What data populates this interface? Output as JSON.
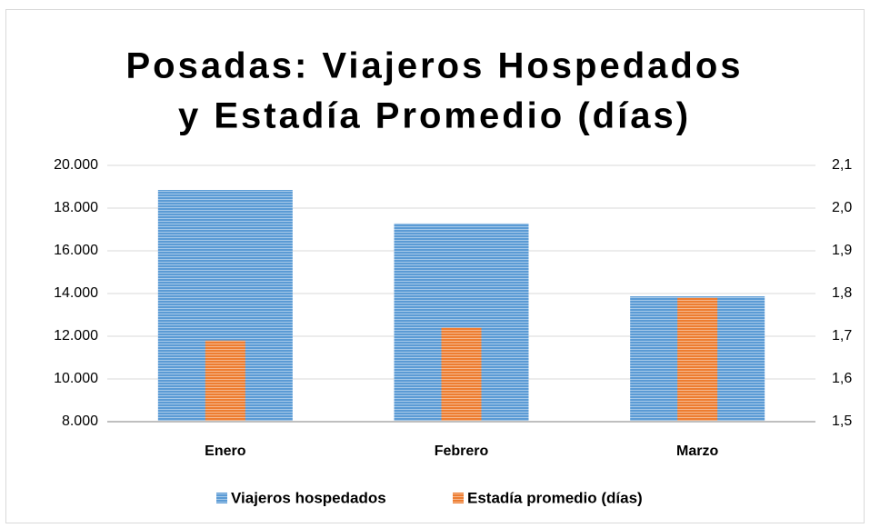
{
  "chart_data": {
    "type": "bar",
    "title": [
      "Posadas: Viajeros Hospedados",
      "y Estadía Promedio (días)"
    ],
    "categories": [
      "Enero",
      "Febrero",
      "Marzo"
    ],
    "series": [
      {
        "name": "Viajeros hospedados",
        "color": "#5b9bd5",
        "values": [
          18850,
          17280,
          13870
        ]
      },
      {
        "name": "Estadía promedio (días)",
        "color": "#ed7d31",
        "values": [
          1.69,
          1.72,
          1.79
        ],
        "axis": "y2"
      }
    ],
    "ylim": [
      8000,
      20000
    ],
    "yticks": [
      {
        "value": 8000,
        "label": "8.000"
      },
      {
        "value": 10000,
        "label": "10.000"
      },
      {
        "value": 12000,
        "label": "12.000"
      },
      {
        "value": 14000,
        "label": "14.000"
      },
      {
        "value": 16000,
        "label": "16.000"
      },
      {
        "value": 18000,
        "label": "18.000"
      },
      {
        "value": 20000,
        "label": "20.000"
      }
    ],
    "y2lim": [
      1.5,
      2.1
    ],
    "y2ticks": [
      {
        "value": 1.5,
        "label": "1,5"
      },
      {
        "value": 1.6,
        "label": "1,6"
      },
      {
        "value": 1.7,
        "label": "1,7"
      },
      {
        "value": 1.8,
        "label": "1,8"
      },
      {
        "value": 1.9,
        "label": "1,9"
      },
      {
        "value": 2.0,
        "label": "2,0"
      },
      {
        "value": 2.1,
        "label": "2,1"
      }
    ],
    "grid": true,
    "legend": "bottom"
  }
}
